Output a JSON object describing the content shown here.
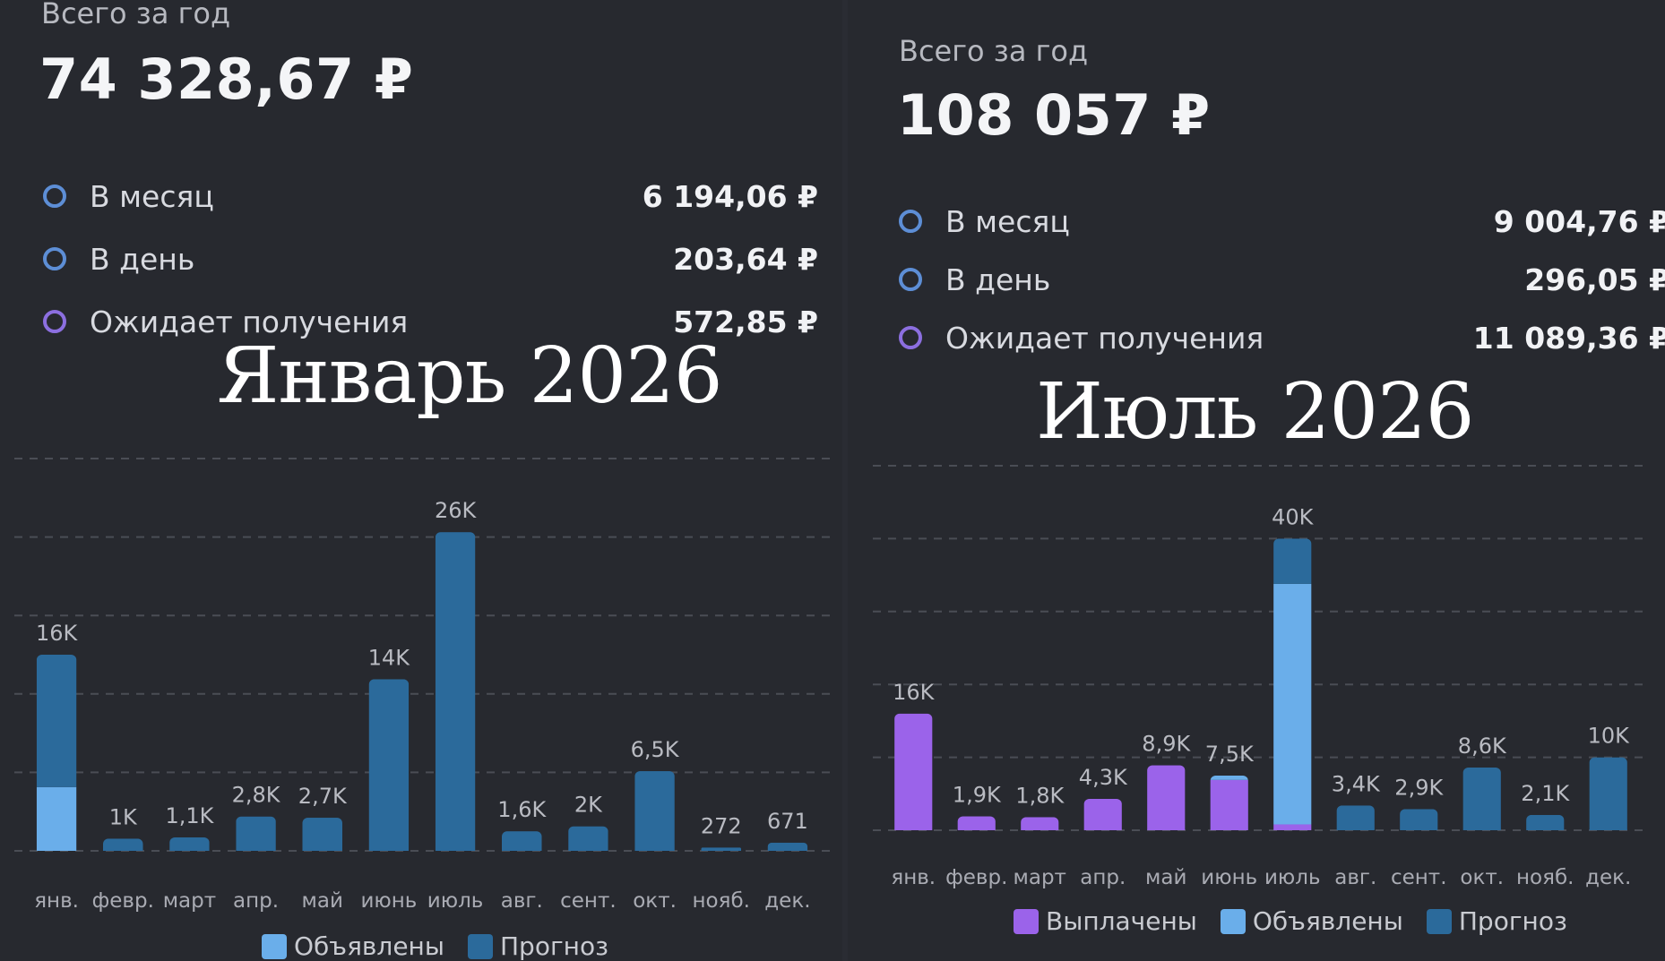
{
  "left": {
    "total_label": "Всего за год",
    "total_value": "74 328,67 ₽",
    "stats": [
      {
        "label": "В месяц",
        "value": "6 194,06 ₽",
        "ring": "#5d8ed6"
      },
      {
        "label": "В день",
        "value": "203,64 ₽",
        "ring": "#5d8ed6"
      },
      {
        "label": "Ожидает получения",
        "value": "572,85 ₽",
        "ring": "#8c6fe0"
      }
    ],
    "overlay_title": "Январь 2026",
    "legend": [
      {
        "label": "Объявлены",
        "color": "#6aaeea"
      },
      {
        "label": "Прогноз",
        "color": "#2b6a9b"
      }
    ]
  },
  "right": {
    "total_label": "Всего за год",
    "total_value": "108 057 ₽",
    "stats": [
      {
        "label": "В месяц",
        "value": "9 004,76 ₽",
        "ring": "#5d8ed6"
      },
      {
        "label": "В день",
        "value": "296,05 ₽",
        "ring": "#5d8ed6"
      },
      {
        "label": "Ожидает получения",
        "value": "11 089,36 ₽",
        "ring": "#8c6fe0"
      }
    ],
    "overlay_title": "Июль 2026",
    "legend": [
      {
        "label": "Выплачены",
        "color": "#9b63ea"
      },
      {
        "label": "Объявлены",
        "color": "#6aaeea"
      },
      {
        "label": "Прогноз",
        "color": "#2b6a9b"
      }
    ]
  },
  "colors": {
    "paid": "#9b63ea",
    "announced": "#6aaeea",
    "forecast": "#2b6a9b",
    "grid": "#4a4d55",
    "axis_text": "#a9abb3",
    "value_text": "#b9bbc2"
  },
  "chart_data": [
    {
      "type": "bar",
      "stacked": true,
      "categories": [
        "янв.",
        "февр.",
        "март",
        "апр.",
        "май",
        "июнь",
        "июль",
        "авг.",
        "сент.",
        "окт.",
        "нояб.",
        "дек."
      ],
      "series": [
        {
          "name": "Объявлены",
          "color": "#6aaeea",
          "values": [
            5200,
            0,
            0,
            0,
            0,
            0,
            0,
            0,
            0,
            0,
            0,
            0
          ]
        },
        {
          "name": "Прогноз",
          "color": "#2b6a9b",
          "values": [
            10800,
            1000,
            1100,
            2800,
            2700,
            14000,
            26000,
            1600,
            2000,
            6500,
            272,
            671
          ]
        }
      ],
      "data_labels": [
        "16K",
        "1K",
        "1,1K",
        "2,8K",
        "2,7K",
        "14K",
        "26K",
        "1,6K",
        "2K",
        "6,5K",
        "272",
        "671"
      ],
      "ylim": [
        0,
        32000
      ],
      "grid": true,
      "legend_position": "bottom"
    },
    {
      "type": "bar",
      "stacked": true,
      "categories": [
        "янв.",
        "февр.",
        "март",
        "апр.",
        "май",
        "июнь",
        "июль",
        "авг.",
        "сент.",
        "окт.",
        "нояб.",
        "дек."
      ],
      "series": [
        {
          "name": "Выплачены",
          "color": "#9b63ea",
          "values": [
            16000,
            1900,
            1800,
            4300,
            8900,
            6900,
            800,
            0,
            0,
            0,
            0,
            0
          ]
        },
        {
          "name": "Объявлены",
          "color": "#6aaeea",
          "values": [
            0,
            0,
            0,
            0,
            0,
            600,
            33000,
            0,
            0,
            0,
            0,
            0
          ]
        },
        {
          "name": "Прогноз",
          "color": "#2b6a9b",
          "values": [
            0,
            0,
            0,
            0,
            0,
            0,
            6200,
            3400,
            2900,
            8600,
            2100,
            10000
          ]
        }
      ],
      "data_labels": [
        "16K",
        "1,9K",
        "1,8K",
        "4,3K",
        "8,9K",
        "7,5K",
        "40K",
        "3,4K",
        "2,9K",
        "8,6K",
        "2,1K",
        "10K"
      ],
      "ylim": [
        0,
        50000
      ],
      "grid": true,
      "legend_position": "bottom"
    }
  ]
}
